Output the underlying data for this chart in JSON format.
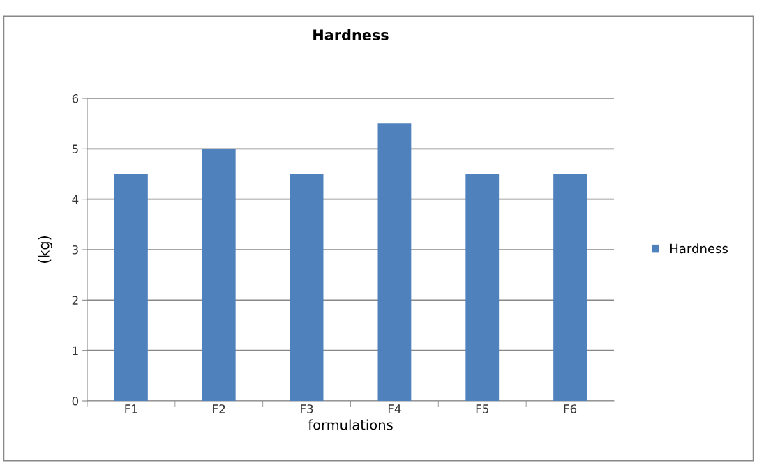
{
  "chart_data": {
    "type": "bar",
    "title": "Hardness",
    "xlabel": "formulations",
    "ylabel": "(kg)",
    "categories": [
      "F1",
      "F2",
      "F3",
      "F4",
      "F5",
      "F6"
    ],
    "series": [
      {
        "name": "Hardness",
        "color": "#4f81bd",
        "values": [
          4.5,
          5,
          4.5,
          5.5,
          4.5,
          4.5
        ]
      }
    ],
    "ylim": [
      0,
      6
    ],
    "yticks": [
      0,
      1,
      2,
      3,
      4,
      5,
      6
    ],
    "grid": "y",
    "legend": "right"
  }
}
